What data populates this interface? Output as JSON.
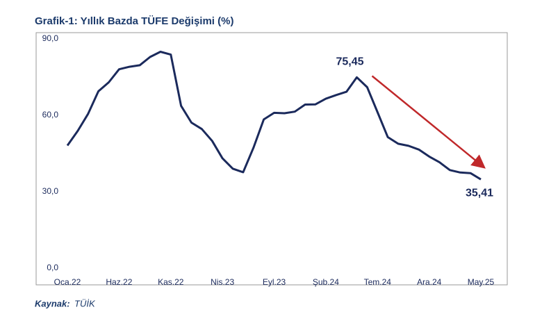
{
  "chart_data": {
    "type": "line",
    "title": "Grafik-1: Yıllık Bazda TÜFE Değişimi (%)",
    "categories": [
      "Oca.22",
      null,
      null,
      null,
      null,
      "Haz.22",
      null,
      null,
      null,
      null,
      "Kas.22",
      null,
      null,
      null,
      null,
      "Nis.23",
      null,
      null,
      null,
      null,
      "Eyl.23",
      null,
      null,
      null,
      null,
      "Şub.24",
      null,
      null,
      null,
      null,
      "Tem.24",
      null,
      null,
      null,
      null,
      "Ara.24",
      null,
      null,
      null,
      null,
      "May.25"
    ],
    "series": [
      {
        "name": "TÜFE",
        "color": "#1b2a5c",
        "values": [
          48.69,
          54.44,
          61.14,
          69.97,
          73.5,
          78.62,
          79.6,
          80.21,
          83.45,
          85.51,
          84.39,
          64.27,
          57.68,
          55.18,
          50.51,
          43.68,
          39.59,
          38.21,
          47.83,
          58.94,
          61.53,
          61.36,
          61.98,
          64.77,
          64.86,
          67.07,
          68.5,
          69.8,
          75.45,
          71.6,
          61.78,
          51.97,
          49.38,
          48.58,
          47.09,
          44.38,
          42.12,
          39.05,
          38.1,
          37.86,
          35.41
        ],
        "value_labels": [
          null,
          null,
          null,
          null,
          null,
          null,
          null,
          null,
          null,
          null,
          null,
          null,
          null,
          null,
          null,
          null,
          null,
          null,
          null,
          null,
          null,
          null,
          null,
          null,
          null,
          null,
          null,
          null,
          "75,45",
          null,
          null,
          null,
          null,
          null,
          null,
          null,
          null,
          null,
          null,
          null,
          "35,41"
        ]
      }
    ],
    "ylim": [
      0,
      90
    ],
    "yticks": [
      {
        "value": 0,
        "label": "0,0"
      },
      {
        "value": 30,
        "label": "30,0"
      },
      {
        "value": 60,
        "label": "60,0"
      },
      {
        "value": 90,
        "label": "90,0"
      }
    ],
    "grid": false,
    "source": {
      "label": "Kaynak:",
      "text": "TÜİK"
    }
  }
}
